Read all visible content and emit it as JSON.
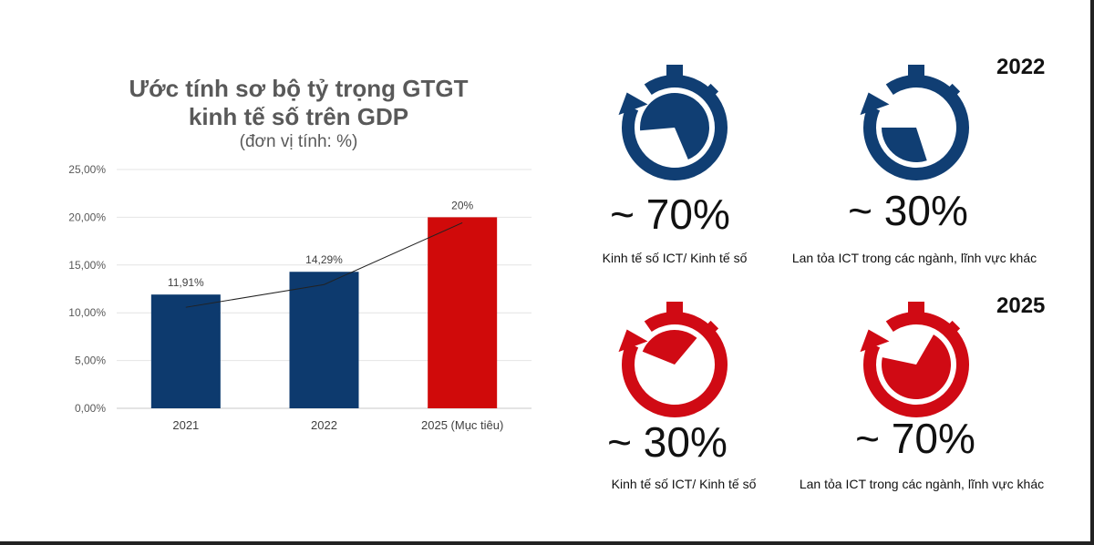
{
  "chart_data": {
    "type": "bar",
    "title": "Ước tính sơ bộ tỷ trọng GTGT kinh tế số trên GDP",
    "title_lines": [
      "Ước tính sơ bộ tỷ trọng GTGT",
      "kinh tế số trên GDP"
    ],
    "subtitle": "(đơn vị tính: %)",
    "categories": [
      "2021",
      "2022",
      "2025 (Mục tiêu)"
    ],
    "values": [
      11.91,
      14.29,
      20
    ],
    "data_labels": [
      "11,91%",
      "14,29%",
      "20%"
    ],
    "bar_colors": [
      "#0d3a6e",
      "#0d3a6e",
      "#d00a0a"
    ],
    "ylim": [
      0,
      25
    ],
    "yticks": [
      "0,00%",
      "5,00%",
      "10,00%",
      "15,00%",
      "20,00%",
      "25,00%"
    ],
    "grid": true,
    "trendline": true
  },
  "gauges": {
    "year_2022": "2022",
    "year_2025": "2025",
    "items": [
      {
        "value": "~ 70%",
        "percent": 70,
        "caption": "Kinh tế số ICT/ Kinh tế số",
        "color": "#103e73"
      },
      {
        "value": "~ 30%",
        "percent": 30,
        "caption": "Lan tỏa ICT trong các ngành, lĩnh vực khác",
        "color": "#103e73"
      },
      {
        "value": "~ 30%",
        "percent": 30,
        "caption": "Kinh tế số ICT/ Kinh tế số",
        "color": "#d00a14"
      },
      {
        "value": "~ 70%",
        "percent": 70,
        "caption": "Lan tỏa ICT trong các ngành, lĩnh vực khác",
        "color": "#d00a14"
      }
    ]
  }
}
